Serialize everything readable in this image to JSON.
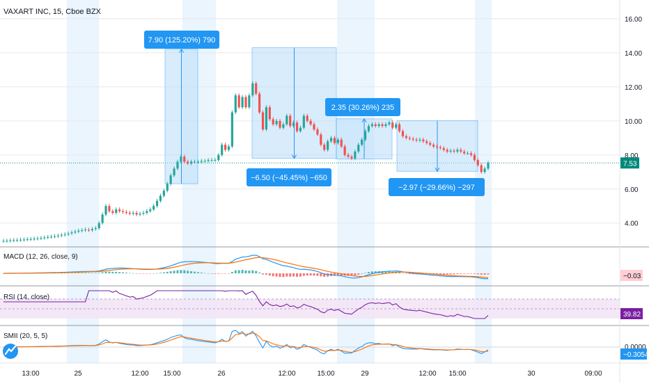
{
  "header": {
    "symbol": "VAXART INC, 15, Cboe BZX"
  },
  "chart_data": {
    "type": "candlestick",
    "ylim": [
      2.6,
      17.1
    ],
    "y_ticks": [
      "4.00",
      "6.00",
      "8.00",
      "10.00",
      "12.00",
      "14.00",
      "16.00"
    ],
    "y_tick_values": [
      4,
      6,
      8,
      10,
      12,
      14,
      16
    ],
    "x_ticks": [
      "13:00",
      "25",
      "12:00",
      "15:00",
      "26",
      "12:00",
      "15:00",
      "29",
      "12:00",
      "15:00",
      "30",
      "09:00"
    ],
    "last_price": "7.53",
    "last_price_value": 7.53,
    "candles": [
      [
        2.95,
        2.95
      ],
      [
        2.95,
        2.96
      ],
      [
        2.96,
        2.98
      ],
      [
        2.98,
        2.99
      ],
      [
        2.99,
        3.0
      ],
      [
        3.0,
        3.02
      ],
      [
        3.02,
        3.03
      ],
      [
        3.03,
        3.05
      ],
      [
        3.05,
        3.06
      ],
      [
        3.06,
        3.08
      ],
      [
        3.08,
        3.1
      ],
      [
        3.1,
        3.12
      ],
      [
        3.12,
        3.15
      ],
      [
        3.15,
        3.18
      ],
      [
        3.18,
        3.2
      ],
      [
        3.2,
        3.23
      ],
      [
        3.23,
        3.26
      ],
      [
        3.26,
        3.3
      ],
      [
        3.3,
        3.34
      ],
      [
        3.34,
        3.38
      ],
      [
        3.4,
        3.45
      ],
      [
        3.45,
        3.5
      ],
      [
        3.5,
        3.55
      ],
      [
        3.55,
        3.58
      ],
      [
        3.58,
        3.62
      ],
      [
        3.6,
        3.58
      ],
      [
        3.58,
        3.65
      ],
      [
        3.65,
        3.7
      ],
      [
        3.7,
        4.0
      ],
      [
        4.0,
        4.5
      ],
      [
        4.5,
        5.0
      ],
      [
        5.0,
        4.7
      ],
      [
        4.7,
        4.6
      ],
      [
        4.6,
        4.8
      ],
      [
        4.8,
        4.7
      ],
      [
        4.7,
        4.65
      ],
      [
        4.65,
        4.6
      ],
      [
        4.6,
        4.55
      ],
      [
        4.55,
        4.6
      ],
      [
        4.6,
        4.5
      ],
      [
        4.5,
        4.55
      ],
      [
        4.55,
        4.6
      ],
      [
        4.6,
        4.7
      ],
      [
        4.7,
        4.8
      ],
      [
        4.8,
        5.0
      ],
      [
        5.0,
        5.3
      ],
      [
        5.3,
        5.6
      ],
      [
        5.6,
        5.9
      ],
      [
        5.9,
        6.3
      ],
      [
        6.3,
        6.8
      ],
      [
        6.8,
        7.2
      ],
      [
        7.2,
        7.6
      ],
      [
        7.6,
        7.9
      ],
      [
        7.9,
        7.6
      ],
      [
        7.6,
        7.5
      ],
      [
        7.5,
        7.6
      ],
      [
        7.6,
        7.6
      ],
      [
        7.6,
        7.6
      ],
      [
        7.6,
        7.65
      ],
      [
        7.65,
        7.65
      ],
      [
        7.65,
        7.7
      ],
      [
        7.7,
        7.7
      ],
      [
        7.7,
        7.7
      ],
      [
        7.7,
        8.0
      ],
      [
        8.0,
        8.6
      ],
      [
        8.6,
        8.3
      ],
      [
        8.3,
        8.5
      ],
      [
        8.5,
        10.5
      ],
      [
        10.5,
        11.5
      ],
      [
        11.5,
        10.8
      ],
      [
        10.8,
        11.4
      ],
      [
        11.4,
        10.8
      ],
      [
        10.8,
        11.5
      ],
      [
        11.5,
        12.2
      ],
      [
        12.2,
        11.6
      ],
      [
        11.6,
        10.5
      ],
      [
        10.5,
        9.5
      ],
      [
        9.5,
        10.8
      ],
      [
        10.8,
        10.1
      ],
      [
        10.1,
        9.8
      ],
      [
        9.8,
        10.0
      ],
      [
        10.0,
        9.6
      ],
      [
        9.6,
        9.8
      ],
      [
        9.8,
        10.3
      ],
      [
        10.3,
        9.7
      ],
      [
        9.7,
        9.9
      ],
      [
        9.9,
        9.4
      ],
      [
        9.4,
        9.6
      ],
      [
        9.6,
        10.3
      ],
      [
        10.3,
        10.0
      ],
      [
        10.0,
        9.8
      ],
      [
        9.8,
        9.5
      ],
      [
        9.5,
        9.2
      ],
      [
        9.2,
        8.6
      ],
      [
        8.6,
        8.3
      ],
      [
        8.3,
        8.8
      ],
      [
        8.8,
        9.0
      ],
      [
        9.0,
        8.7
      ],
      [
        8.7,
        8.9
      ],
      [
        8.9,
        8.5
      ],
      [
        8.5,
        8.0
      ],
      [
        8.0,
        7.9
      ],
      [
        7.9,
        7.8
      ],
      [
        7.8,
        8.2
      ],
      [
        8.2,
        8.6
      ],
      [
        8.6,
        8.9
      ],
      [
        8.9,
        9.4
      ],
      [
        9.4,
        9.7
      ],
      [
        9.7,
        9.8
      ],
      [
        9.8,
        9.7
      ],
      [
        9.7,
        9.8
      ],
      [
        9.8,
        9.7
      ],
      [
        9.7,
        9.8
      ],
      [
        9.8,
        9.9
      ],
      [
        9.9,
        9.6
      ],
      [
        9.6,
        9.8
      ],
      [
        9.8,
        9.4
      ],
      [
        9.4,
        9.1
      ],
      [
        9.1,
        9.0
      ],
      [
        9.0,
        8.95
      ],
      [
        8.95,
        8.9
      ],
      [
        8.9,
        8.85
      ],
      [
        8.85,
        8.9
      ],
      [
        8.9,
        8.8
      ],
      [
        8.8,
        8.7
      ],
      [
        8.7,
        8.6
      ],
      [
        8.6,
        8.5
      ],
      [
        8.5,
        8.45
      ],
      [
        8.45,
        8.4
      ],
      [
        8.4,
        8.3
      ],
      [
        8.3,
        8.2
      ],
      [
        8.2,
        8.25
      ],
      [
        8.25,
        8.2
      ],
      [
        8.2,
        8.3
      ],
      [
        8.3,
        8.2
      ],
      [
        8.2,
        8.1
      ],
      [
        8.1,
        8.1
      ],
      [
        8.1,
        8.0
      ],
      [
        8.0,
        7.7
      ],
      [
        7.7,
        7.4
      ],
      [
        7.4,
        7.0
      ],
      [
        7.0,
        7.2
      ],
      [
        7.2,
        7.53
      ]
    ],
    "measurements": [
      {
        "label": "7.90 (125.20%) 790",
        "from": 6.31,
        "to": 14.21,
        "direction": "up"
      },
      {
        "label": "−6.50 (−45.45%) −650",
        "from": 14.3,
        "to": 7.8,
        "direction": "down"
      },
      {
        "label": "2.35 (30.26%) 235",
        "from": 7.77,
        "to": 10.12,
        "direction": "up"
      },
      {
        "label": "−2.97 (−29.66%) −297",
        "from": 10.01,
        "to": 7.04,
        "direction": "down"
      }
    ],
    "indicators": {
      "macd": {
        "label": "MACD (12, 26, close, 9)",
        "value": "−0.03"
      },
      "rsi": {
        "label": "RSI (14, close)",
        "value": "39.82",
        "band_upper": "70.00",
        "band_mid": "50.00"
      },
      "smii": {
        "label": "SMII (20, 5, 5)",
        "value_top": "0.0000",
        "value": "−0.3054"
      }
    }
  },
  "colors": {
    "up": "#26a69a",
    "down": "#ef5350",
    "session_shade": "#e3f2fd",
    "measure_fill": "#bbdefb",
    "measure_label": "#2196f3",
    "price_tag": "#00897b",
    "macd_line": "#2196f3",
    "signal_line": "#ff6d00",
    "rsi_line": "#7b1fa2",
    "rsi_band": "#f3e5f5"
  }
}
